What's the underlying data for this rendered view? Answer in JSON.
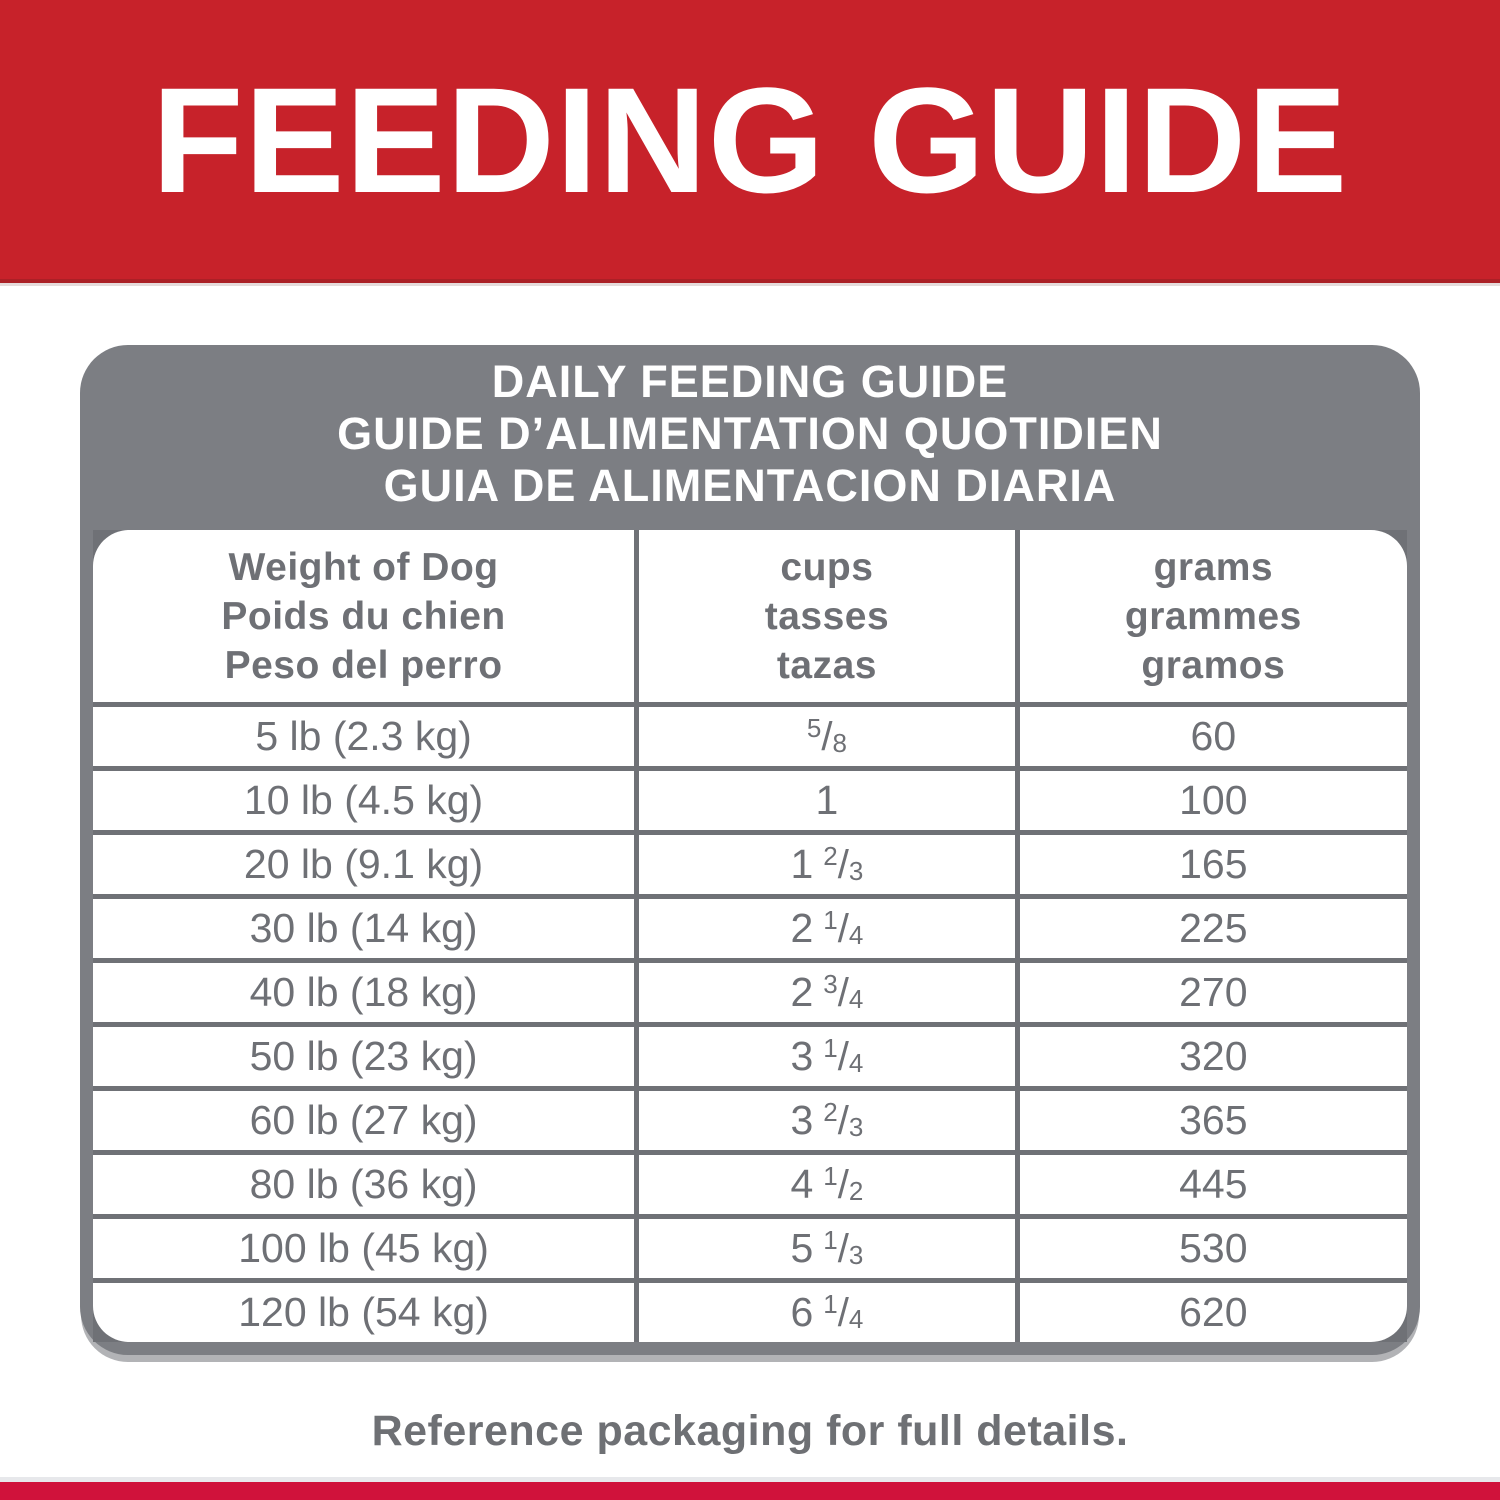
{
  "banner": {
    "title": "FEEDING GUIDE"
  },
  "table": {
    "title_lines": [
      "DAILY FEEDING GUIDE",
      "GUIDE D’ALIMENTATION QUOTIDIEN",
      "GUIA DE ALIMENTACION DIARIA"
    ],
    "columns": [
      {
        "id": "weight",
        "lines": [
          "Weight of Dog",
          "Poids du chien",
          "Peso del perro"
        ]
      },
      {
        "id": "cups",
        "lines": [
          "cups",
          "tasses",
          "tazas"
        ]
      },
      {
        "id": "grams",
        "lines": [
          "grams",
          "grammes",
          "gramos"
        ]
      }
    ],
    "rows": [
      {
        "weight": "5 lb (2.3 kg)",
        "cups": "5/8",
        "grams": "60"
      },
      {
        "weight": "10 lb (4.5 kg)",
        "cups": "1",
        "grams": "100"
      },
      {
        "weight": "20 lb (9.1 kg)",
        "cups": "1 2/3",
        "grams": "165"
      },
      {
        "weight": "30 lb (14 kg)",
        "cups": "2 1/4",
        "grams": "225"
      },
      {
        "weight": "40 lb (18 kg)",
        "cups": "2 3/4",
        "grams": "270"
      },
      {
        "weight": "50 lb (23 kg)",
        "cups": "3 1/4",
        "grams": "320"
      },
      {
        "weight": "60 lb (27 kg)",
        "cups": "3 2/3",
        "grams": "365"
      },
      {
        "weight": "80 lb (36 kg)",
        "cups": "4 1/2",
        "grams": "445"
      },
      {
        "weight": "100 lb (45 kg)",
        "cups": "5 1/3",
        "grams": "530"
      },
      {
        "weight": "120 lb (54 kg)",
        "cups": "6 1/4",
        "grams": "620"
      }
    ]
  },
  "footer": {
    "note": "Reference packaging for full details."
  },
  "colors": {
    "banner_red": "#C7222A",
    "strip_red": "#D0123B",
    "card_gray": "#7C7E83",
    "line_gray": "#6F7176",
    "text_gray": "#6E7075",
    "footer_gray": "#6E7074",
    "white": "#FFFFFF"
  }
}
